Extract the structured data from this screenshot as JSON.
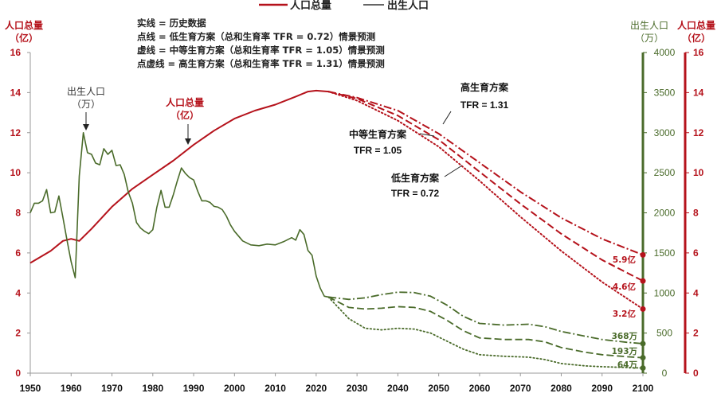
{
  "chart_data": {
    "type": "line",
    "title": "",
    "legend": [
      {
        "name": "人口总量",
        "color": "#b5121b",
        "style": "solid"
      },
      {
        "name": "出生人口",
        "color": "#4a6b2a",
        "style": "solid"
      }
    ],
    "legend_notes": [
      "实线 = 历史数据",
      "点线 = 低生育方案（总和生育率 TFR = 0.72）情景预测",
      "虚线 = 中等生育方案（总和生育率 TFR = 1.05）情景预测",
      "点虚线 = 高生育方案（总和生育率 TFR = 1.31）情景预测"
    ],
    "left_axis": {
      "label_line1": "人口总量",
      "label_line2": "（亿）",
      "range": [
        0,
        16
      ],
      "ticks": [
        0,
        2,
        4,
        6,
        8,
        10,
        12,
        14,
        16
      ]
    },
    "right_axis_births": {
      "label_line1": "出生人口",
      "label_line2": "（万）",
      "range": [
        0,
        4000
      ],
      "ticks": [
        0,
        500,
        1000,
        1500,
        2000,
        2500,
        3000,
        3500,
        4000
      ]
    },
    "right_axis_population": {
      "label_line1": "人口总量",
      "label_line2": "（亿）",
      "range": [
        0,
        16
      ],
      "ticks": [
        0,
        2,
        4,
        6,
        8,
        10,
        12,
        14,
        16
      ]
    },
    "x_axis": {
      "range": [
        1950,
        2100
      ],
      "ticks": [
        1950,
        1960,
        1970,
        1980,
        1990,
        2000,
        2010,
        2020,
        2030,
        2040,
        2050,
        2060,
        2070,
        2080,
        2090,
        2100
      ]
    },
    "annotations": {
      "births_label_line1": "出生人口",
      "births_label_line2": "（万）",
      "pop_label_line1": "人口总量",
      "pop_label_line2": "（亿）",
      "high_line1": "高生育方案",
      "high_line2": "TFR = 1.31",
      "mid_line1": "中等生育方案",
      "mid_line2": "TFR = 1.05",
      "low_line1": "低生育方案",
      "low_line2": "TFR = 0.72"
    },
    "end_labels": {
      "pop_high": "5.9亿",
      "pop_mid": "4.6亿",
      "pop_low": "3.2亿",
      "births_high": "368万",
      "births_mid": "193万",
      "births_low": "64万"
    },
    "series": [
      {
        "name": "人口总量-历史",
        "axis": "population",
        "style": "solid",
        "color": "#b5121b",
        "x": [
          1950,
          1955,
          1958,
          1960,
          1962,
          1965,
          1970,
          1975,
          1980,
          1985,
          1990,
          1995,
          2000,
          2005,
          2010,
          2015,
          2018,
          2020,
          2023
        ],
        "values": [
          5.5,
          6.1,
          6.6,
          6.7,
          6.6,
          7.2,
          8.3,
          9.2,
          9.9,
          10.6,
          11.4,
          12.1,
          12.7,
          13.1,
          13.4,
          13.8,
          14.05,
          14.1,
          14.05
        ]
      },
      {
        "name": "人口总量-高",
        "axis": "population",
        "style": "dashdot",
        "color": "#b5121b",
        "x": [
          2023,
          2030,
          2040,
          2050,
          2060,
          2070,
          2080,
          2090,
          2100
        ],
        "values": [
          14.05,
          13.75,
          13.1,
          11.95,
          10.5,
          9.05,
          7.75,
          6.7,
          5.9
        ]
      },
      {
        "name": "人口总量-中",
        "axis": "population",
        "style": "dash",
        "color": "#b5121b",
        "x": [
          2023,
          2030,
          2040,
          2050,
          2060,
          2070,
          2080,
          2090,
          2100
        ],
        "values": [
          14.05,
          13.7,
          12.85,
          11.65,
          10.05,
          8.45,
          6.95,
          5.65,
          4.6
        ]
      },
      {
        "name": "人口总量-低",
        "axis": "population",
        "style": "dot",
        "color": "#b5121b",
        "x": [
          2023,
          2030,
          2040,
          2050,
          2060,
          2070,
          2080,
          2090,
          2100
        ],
        "values": [
          14.05,
          13.6,
          12.6,
          11.3,
          9.6,
          7.8,
          6.1,
          4.55,
          3.2
        ]
      },
      {
        "name": "出生人口-历史",
        "axis": "births",
        "style": "solid",
        "color": "#4a6b2a",
        "x": [
          1950,
          1951,
          1952,
          1953,
          1954,
          1955,
          1956,
          1957,
          1958,
          1959,
          1960,
          1961,
          1962,
          1963,
          1964,
          1965,
          1966,
          1967,
          1968,
          1969,
          1970,
          1971,
          1972,
          1973,
          1974,
          1975,
          1976,
          1977,
          1978,
          1979,
          1980,
          1981,
          1982,
          1983,
          1984,
          1985,
          1986,
          1987,
          1988,
          1989,
          1990,
          1991,
          1992,
          1993,
          1994,
          1995,
          1996,
          1997,
          1998,
          1999,
          2000,
          2002,
          2004,
          2006,
          2008,
          2010,
          2012,
          2014,
          2015,
          2016,
          2017,
          2018,
          2019,
          2020,
          2021,
          2022,
          2023
        ],
        "values": [
          2000,
          2120,
          2120,
          2150,
          2290,
          2000,
          2010,
          2210,
          1940,
          1660,
          1390,
          1190,
          2460,
          3000,
          2750,
          2730,
          2620,
          2600,
          2800,
          2730,
          2780,
          2590,
          2600,
          2480,
          2260,
          2120,
          1880,
          1810,
          1770,
          1740,
          1790,
          2070,
          2280,
          2070,
          2070,
          2220,
          2400,
          2560,
          2490,
          2440,
          2410,
          2270,
          2150,
          2150,
          2130,
          2080,
          2070,
          2040,
          1960,
          1850,
          1770,
          1650,
          1600,
          1590,
          1610,
          1600,
          1640,
          1690,
          1660,
          1790,
          1730,
          1530,
          1470,
          1210,
          1060,
          960,
          950
        ]
      },
      {
        "name": "出生人口-高",
        "axis": "births",
        "style": "dashdot",
        "color": "#4a6b2a",
        "x": [
          2023,
          2028,
          2032,
          2036,
          2040,
          2044,
          2048,
          2052,
          2056,
          2060,
          2066,
          2072,
          2076,
          2080,
          2086,
          2090,
          2096,
          2100
        ],
        "values": [
          950,
          920,
          940,
          980,
          1010,
          1005,
          960,
          850,
          710,
          620,
          600,
          610,
          580,
          520,
          460,
          420,
          385,
          368
        ]
      },
      {
        "name": "出生人口-中",
        "axis": "births",
        "style": "dash",
        "color": "#4a6b2a",
        "x": [
          2023,
          2028,
          2032,
          2036,
          2040,
          2044,
          2048,
          2052,
          2056,
          2060,
          2066,
          2072,
          2076,
          2080,
          2086,
          2090,
          2096,
          2100
        ],
        "values": [
          950,
          820,
          800,
          810,
          830,
          820,
          770,
          660,
          530,
          440,
          420,
          420,
          390,
          320,
          260,
          230,
          205,
          193
        ]
      },
      {
        "name": "出生人口-低",
        "axis": "births",
        "style": "dot",
        "color": "#4a6b2a",
        "x": [
          2023,
          2028,
          2032,
          2036,
          2040,
          2044,
          2048,
          2052,
          2056,
          2060,
          2066,
          2072,
          2076,
          2080,
          2086,
          2090,
          2096,
          2100
        ],
        "values": [
          950,
          680,
          560,
          540,
          560,
          550,
          500,
          400,
          300,
          230,
          210,
          200,
          170,
          120,
          90,
          80,
          70,
          64
        ]
      }
    ]
  }
}
